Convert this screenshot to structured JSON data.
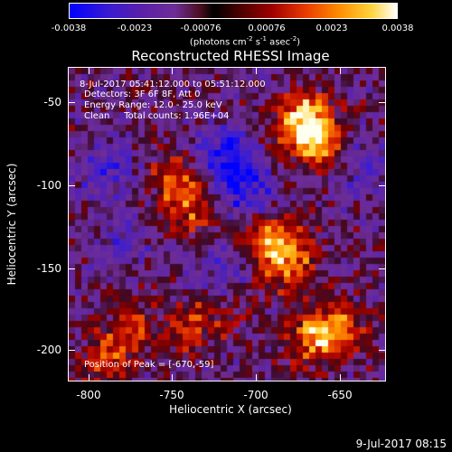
{
  "colorbar": {
    "ticks": [
      "-0.0038",
      "-0.0023",
      "-0.00076",
      "0.00076",
      "0.0023",
      "0.0038"
    ],
    "unit_prefix": "(photons cm",
    "unit_sup1": "-2",
    "unit_mid": " s",
    "unit_sup2": "-1",
    "unit_end": " asec",
    "unit_sup3": "-2",
    "unit_close": ")"
  },
  "title": "Reconstructed RHESSI Image",
  "info": {
    "time_range": "8-Jul-2017 05:41:12.000 to 05:51:12.000",
    "detectors": "Detectors: 3F 6F 8F, Att 0",
    "energy": "Energy Range: 12.0 - 25.0 keV",
    "clean": "Clean     Total counts: 1.96E+04",
    "peak": "Position of Peak = [-670,-59]"
  },
  "axes": {
    "ylabel": "Heliocentric Y (arcsec)",
    "xlabel": "Heliocentric X (arcsec)",
    "yticks": [
      "-50",
      "-100",
      "-150",
      "-200"
    ],
    "xticks": [
      "-800",
      "-750",
      "-700",
      "-650"
    ]
  },
  "footer": "9-Jul-2017 08:15",
  "colors": {
    "axis": "#ffffff",
    "background": "#000000"
  },
  "chart_data": {
    "type": "heatmap",
    "title": "Reconstructed RHESSI Image",
    "xlabel": "Heliocentric X (arcsec)",
    "ylabel": "Heliocentric Y (arcsec)",
    "xlim": [
      -812,
      -622
    ],
    "ylim": [
      -222,
      -28
    ],
    "colorbar_range": [
      -0.0038,
      0.0038
    ],
    "colorbar_ticks": [
      -0.0038,
      -0.0023,
      -0.00076,
      0.00076,
      0.0023,
      0.0038
    ],
    "peak_position": [
      -670,
      -59
    ],
    "bright_regions": [
      {
        "x": -670,
        "y": -59,
        "level": 1.0
      },
      {
        "x": -665,
        "y": -75,
        "level": 0.85
      },
      {
        "x": -690,
        "y": -135,
        "level": 0.75
      },
      {
        "x": -680,
        "y": -150,
        "level": 0.7
      },
      {
        "x": -745,
        "y": -95,
        "level": 0.6
      },
      {
        "x": -740,
        "y": -115,
        "level": 0.55
      },
      {
        "x": -665,
        "y": -195,
        "level": 0.7
      },
      {
        "x": -650,
        "y": -190,
        "level": 0.65
      },
      {
        "x": -775,
        "y": -190,
        "level": 0.55
      },
      {
        "x": -790,
        "y": -210,
        "level": 0.5
      },
      {
        "x": -740,
        "y": -190,
        "level": 0.45
      },
      {
        "x": -720,
        "y": -175,
        "level": 0.4
      }
    ],
    "dark_regions": [
      {
        "x": -720,
        "y": -85,
        "level": -0.8
      },
      {
        "x": -705,
        "y": -105,
        "level": -0.6
      },
      {
        "x": -790,
        "y": -90,
        "level": -0.5
      },
      {
        "x": -720,
        "y": -160,
        "level": -0.45
      },
      {
        "x": -635,
        "y": -90,
        "level": -0.4
      },
      {
        "x": -780,
        "y": -135,
        "level": -0.35
      }
    ]
  }
}
